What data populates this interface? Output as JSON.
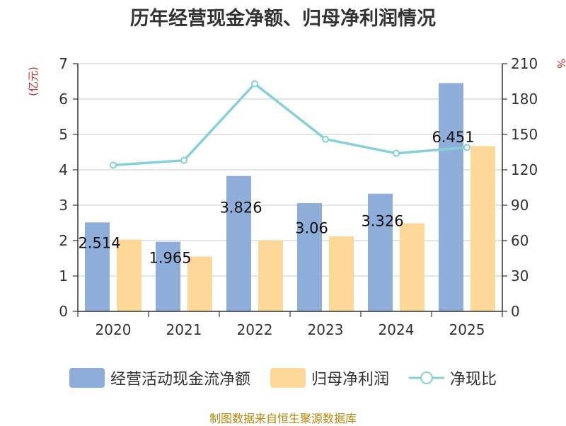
{
  "title": "历年经营现金净额、归母净利润情况",
  "footer": "制图数据来自恒生聚源数据库",
  "chart_data": {
    "type": "bar",
    "title": "历年经营现金净额、归母净利润情况",
    "categories": [
      "2020",
      "2021",
      "2022",
      "2023",
      "2024",
      "2025"
    ],
    "y_left": {
      "label": "(亿元)",
      "ylim": [
        0,
        7
      ],
      "ticks": [
        "0",
        "1",
        "2",
        "3",
        "4",
        "5",
        "6",
        "7"
      ],
      "label_color": "#d32f2f"
    },
    "y_right": {
      "label": "%",
      "ylim": [
        0,
        210
      ],
      "ticks": [
        "0",
        "30",
        "60",
        "90",
        "120",
        "150",
        "180",
        "210"
      ],
      "label_color": "#d32f2f"
    },
    "series": [
      {
        "name": "经营活动现金流净额",
        "kind": "bar",
        "axis": "left",
        "color": "#8eadd9",
        "values": [
          2.514,
          1.965,
          3.826,
          3.06,
          3.326,
          6.451
        ],
        "labels": [
          "2.514",
          "1.965",
          "3.826",
          "3.06",
          "3.326",
          "6.451"
        ]
      },
      {
        "name": "归母净利润",
        "kind": "bar",
        "axis": "left",
        "color": "#fdd898",
        "values": [
          2.03,
          1.55,
          2.0,
          2.12,
          2.49,
          4.67
        ]
      },
      {
        "name": "净现比",
        "kind": "line",
        "axis": "right",
        "color": "#86d1d6",
        "values": [
          124,
          128,
          193,
          146,
          134,
          139
        ]
      }
    ],
    "grid": true,
    "legend_position": "bottom"
  }
}
